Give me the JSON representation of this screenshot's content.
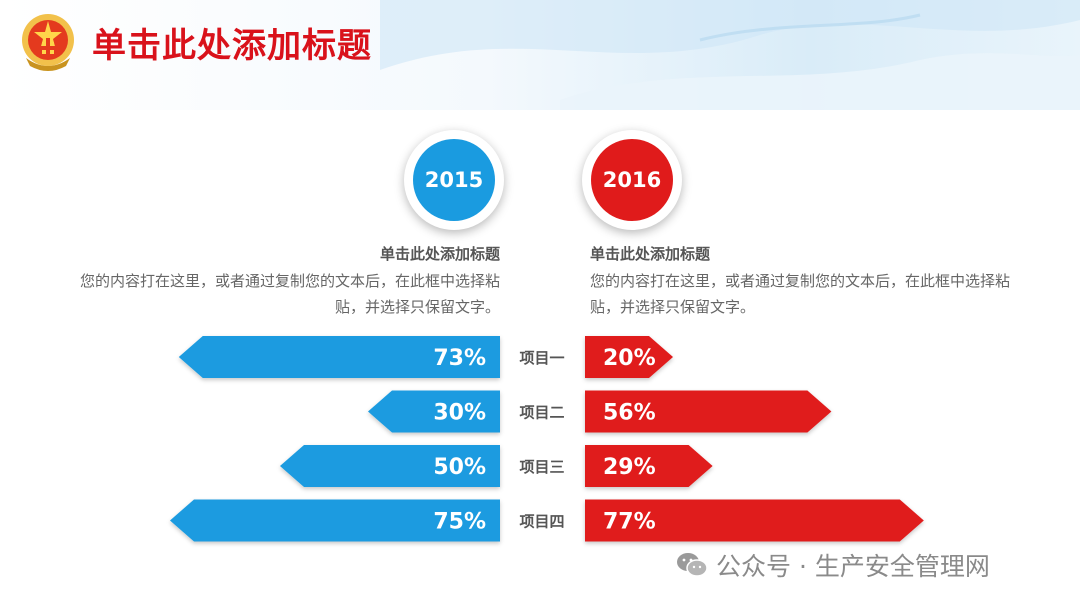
{
  "header": {
    "title": "单击此处添加标题"
  },
  "left": {
    "year": "2015",
    "heading": "单击此处添加标题",
    "body": "您的内容打在这里，或者通过复制您的文本后，在此框中选择粘贴，并选择只保留文字。"
  },
  "right": {
    "year": "2016",
    "heading": "单击此处添加标题",
    "body": "您的内容打在这里，或者通过复制您的文本后，在此框中选择粘贴，并选择只保留文字。"
  },
  "colors": {
    "left": "#1a9be0",
    "right": "#e01b1b",
    "title": "#d9121b"
  },
  "chart_data": {
    "type": "bar",
    "categories": [
      "项目一",
      "项目二",
      "项目三",
      "项目四"
    ],
    "series": [
      {
        "values": [
          73,
          30,
          50,
          75
        ],
        "labels": [
          "73%",
          "30%",
          "50%",
          "75%"
        ]
      },
      {
        "values": [
          20,
          56,
          29,
          77
        ],
        "labels": [
          "20%",
          "56%",
          "29%",
          "77%"
        ]
      }
    ]
  },
  "watermark": {
    "text": "公众号 · 生产安全管理网"
  }
}
